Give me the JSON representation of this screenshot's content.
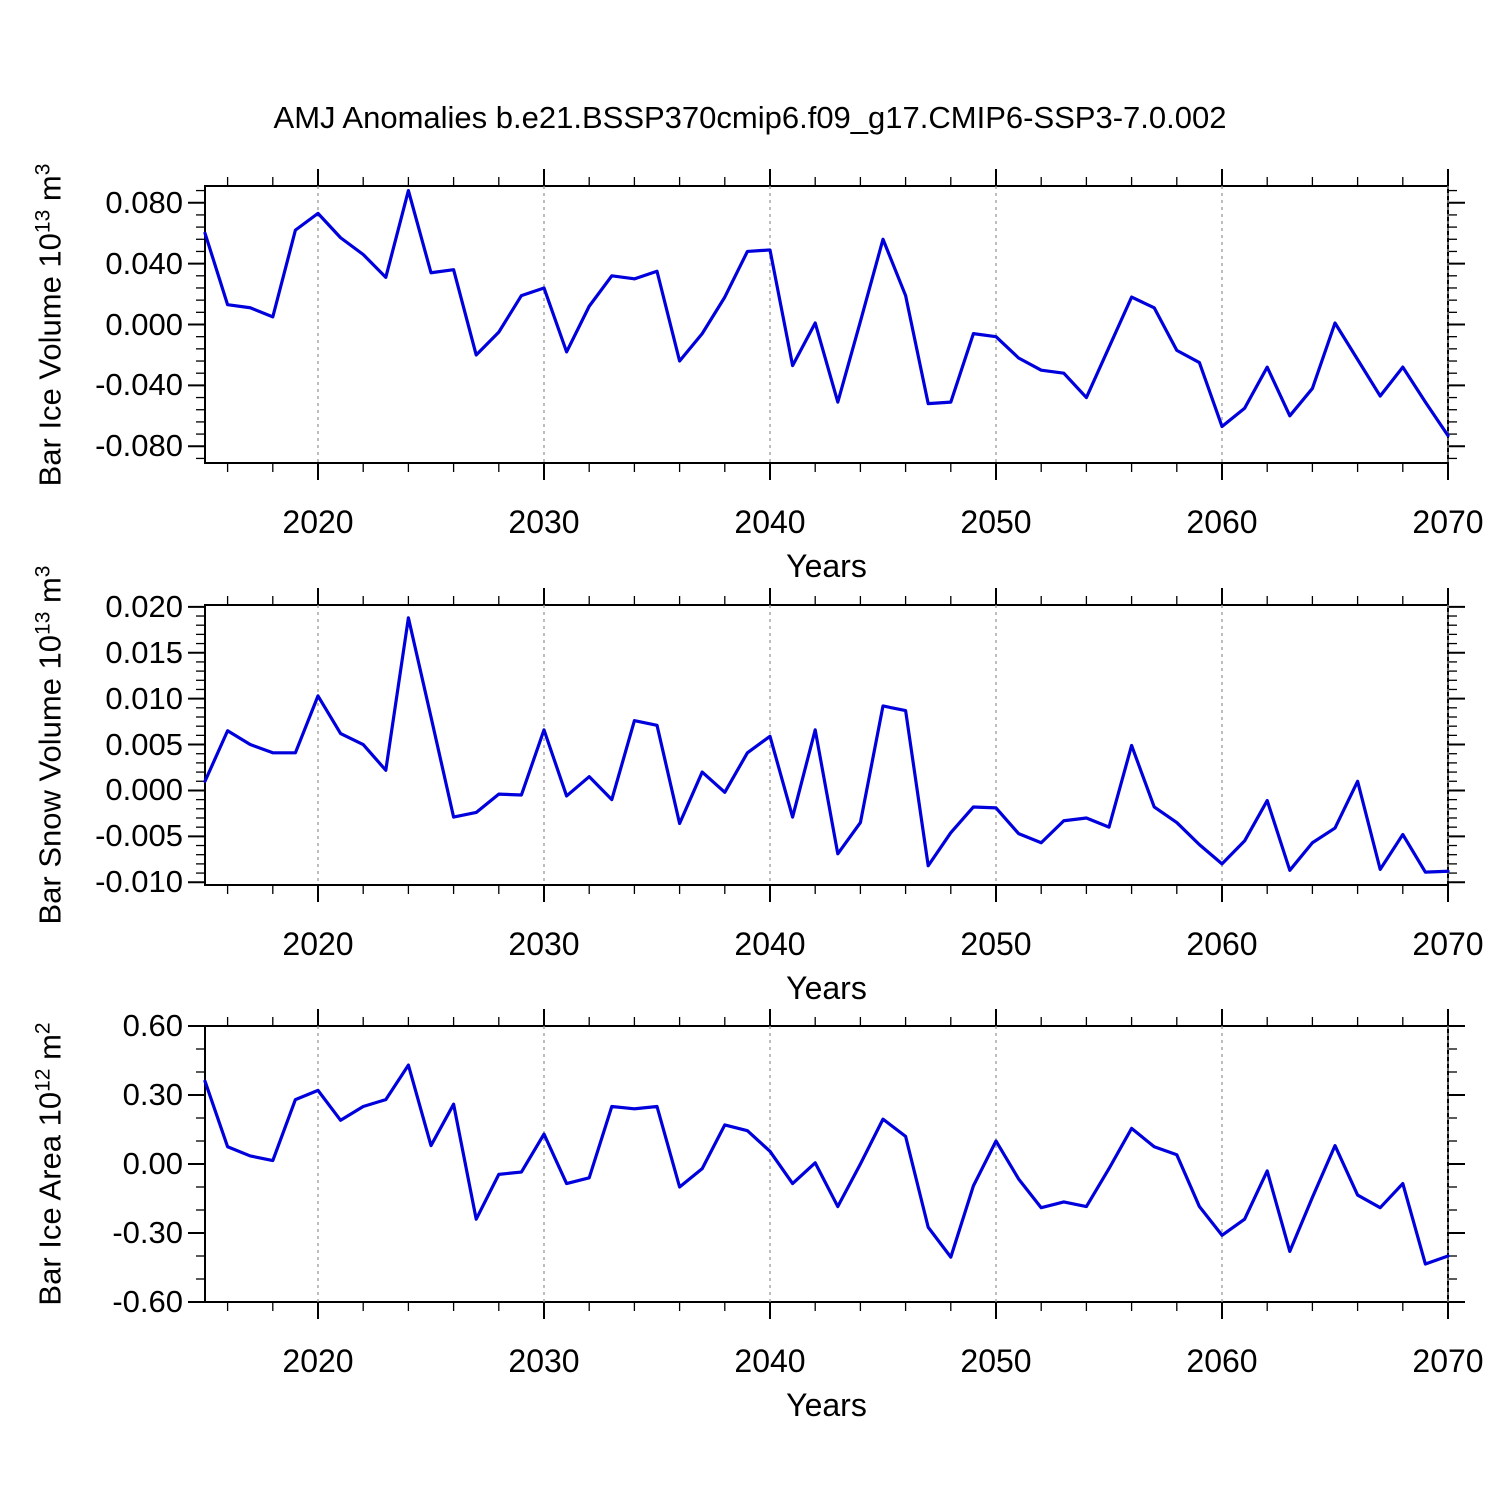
{
  "title": "AMJ Anomalies b.e21.BSSP370cmip6.f09_g17.CMIP6-SSP3-7.0.002",
  "style": {
    "line_color": "#0000DD",
    "grid_color": "#9A9A9A",
    "axis_color": "#000000",
    "background": "#FFFFFF"
  },
  "chart_data": [
    {
      "type": "line",
      "ylabel_segments": [
        {
          "t": "Bar Ice Volume 10",
          "sup": false
        },
        {
          "t": "13",
          "sup": true
        },
        {
          "t": " m",
          "sup": false
        },
        {
          "t": "3",
          "sup": true
        }
      ],
      "xlabel": "Years",
      "x_start": 2015,
      "x_end": 2070,
      "x_major_ticks": [
        2020,
        2030,
        2040,
        2050,
        2060,
        2070
      ],
      "x_tick_labels": [
        "2020",
        "2030",
        "2040",
        "2050",
        "2060",
        "2070"
      ],
      "x_minor_step": 2,
      "x_gridlines": [
        2020,
        2030,
        2040,
        2050,
        2060,
        2070
      ],
      "ylim": [
        -0.091,
        0.091
      ],
      "y_major_ticks": [
        0.08,
        0.04,
        0.0,
        -0.04,
        -0.08
      ],
      "y_tick_labels": [
        "0.080",
        "0.040",
        "0.000",
        "-0.040",
        "-0.080"
      ],
      "y_minor_step": 0.008,
      "grid": true,
      "legend": "none",
      "years": [
        2015,
        2016,
        2017,
        2018,
        2019,
        2020,
        2021,
        2022,
        2023,
        2024,
        2025,
        2026,
        2027,
        2028,
        2029,
        2030,
        2031,
        2032,
        2033,
        2034,
        2035,
        2036,
        2037,
        2038,
        2039,
        2040,
        2041,
        2042,
        2043,
        2044,
        2045,
        2046,
        2047,
        2048,
        2049,
        2050,
        2051,
        2052,
        2053,
        2054,
        2055,
        2056,
        2057,
        2058,
        2059,
        2060,
        2061,
        2062,
        2063,
        2064,
        2065,
        2066,
        2067,
        2068,
        2069,
        2070
      ],
      "values": [
        0.06,
        0.013,
        0.011,
        0.005,
        0.062,
        0.073,
        0.057,
        0.046,
        0.031,
        0.088,
        0.034,
        0.036,
        -0.02,
        -0.005,
        0.019,
        0.024,
        -0.018,
        0.012,
        0.032,
        0.03,
        0.035,
        -0.024,
        -0.006,
        0.018,
        0.048,
        0.049,
        -0.027,
        0.001,
        -0.051,
        0.002,
        0.056,
        0.019,
        -0.052,
        -0.051,
        -0.006,
        -0.008,
        -0.022,
        -0.03,
        -0.032,
        -0.048,
        -0.015,
        0.018,
        0.011,
        -0.017,
        -0.025,
        -0.067,
        -0.055,
        -0.028,
        -0.06,
        -0.042,
        0.001,
        -0.023,
        -0.047,
        -0.028,
        -0.051,
        -0.073
      ]
    },
    {
      "type": "line",
      "ylabel_segments": [
        {
          "t": "Bar Snow Volume 10",
          "sup": false
        },
        {
          "t": "13",
          "sup": true
        },
        {
          "t": " m",
          "sup": false
        },
        {
          "t": "3",
          "sup": true
        }
      ],
      "xlabel": "Years",
      "x_start": 2015,
      "x_end": 2070,
      "x_major_ticks": [
        2020,
        2030,
        2040,
        2050,
        2060,
        2070
      ],
      "x_tick_labels": [
        "2020",
        "2030",
        "2040",
        "2050",
        "2060",
        "2070"
      ],
      "x_minor_step": 2,
      "x_gridlines": [
        2020,
        2030,
        2040,
        2050,
        2060,
        2070
      ],
      "ylim": [
        -0.0103,
        0.0202
      ],
      "y_major_ticks": [
        0.02,
        0.015,
        0.01,
        0.005,
        0.0,
        -0.005,
        -0.01
      ],
      "y_tick_labels": [
        "0.020",
        "0.015",
        "0.010",
        "0.005",
        "0.000",
        "-0.005",
        "-0.010"
      ],
      "y_minor_step": 0.001,
      "grid": true,
      "legend": "none",
      "years": [
        2015,
        2016,
        2017,
        2018,
        2019,
        2020,
        2021,
        2022,
        2023,
        2024,
        2025,
        2026,
        2027,
        2028,
        2029,
        2030,
        2031,
        2032,
        2033,
        2034,
        2035,
        2036,
        2037,
        2038,
        2039,
        2040,
        2041,
        2042,
        2043,
        2044,
        2045,
        2046,
        2047,
        2048,
        2049,
        2050,
        2051,
        2052,
        2053,
        2054,
        2055,
        2056,
        2057,
        2058,
        2059,
        2060,
        2061,
        2062,
        2063,
        2064,
        2065,
        2066,
        2067,
        2068,
        2069,
        2070
      ],
      "values": [
        0.001,
        0.0065,
        0.005,
        0.0041,
        0.0041,
        0.0103,
        0.0062,
        0.005,
        0.0022,
        0.0188,
        0.008,
        -0.0029,
        -0.0024,
        -0.0004,
        -0.0005,
        0.0066,
        -0.0006,
        0.0015,
        -0.001,
        0.0076,
        0.0071,
        -0.0036,
        0.002,
        -0.0002,
        0.0041,
        0.0059,
        -0.0029,
        0.0066,
        -0.0069,
        -0.0035,
        0.0092,
        0.0087,
        -0.0082,
        -0.0046,
        -0.0018,
        -0.0019,
        -0.0047,
        -0.0057,
        -0.0033,
        -0.003,
        -0.004,
        0.0049,
        -0.0018,
        -0.0035,
        -0.0059,
        -0.008,
        -0.0055,
        -0.0011,
        -0.0087,
        -0.0057,
        -0.0041,
        0.001,
        -0.0086,
        -0.0048,
        -0.0089,
        -0.0088
      ]
    },
    {
      "type": "line",
      "ylabel_segments": [
        {
          "t": "Bar Ice Area 10",
          "sup": false
        },
        {
          "t": "12",
          "sup": true
        },
        {
          "t": " m",
          "sup": false
        },
        {
          "t": "2",
          "sup": true
        }
      ],
      "xlabel": "Years",
      "x_start": 2015,
      "x_end": 2070,
      "x_major_ticks": [
        2020,
        2030,
        2040,
        2050,
        2060,
        2070
      ],
      "x_tick_labels": [
        "2020",
        "2030",
        "2040",
        "2050",
        "2060",
        "2070"
      ],
      "x_minor_step": 2,
      "x_gridlines": [
        2020,
        2030,
        2040,
        2050,
        2060,
        2070
      ],
      "ylim": [
        -0.6,
        0.6
      ],
      "y_major_ticks": [
        0.6,
        0.3,
        0.0,
        -0.3,
        -0.6
      ],
      "y_tick_labels": [
        "0.60",
        "0.30",
        "0.00",
        "-0.30",
        "-0.60"
      ],
      "y_minor_step": 0.1,
      "grid": true,
      "legend": "none",
      "years": [
        2015,
        2016,
        2017,
        2018,
        2019,
        2020,
        2021,
        2022,
        2023,
        2024,
        2025,
        2026,
        2027,
        2028,
        2029,
        2030,
        2031,
        2032,
        2033,
        2034,
        2035,
        2036,
        2037,
        2038,
        2039,
        2040,
        2041,
        2042,
        2043,
        2044,
        2045,
        2046,
        2047,
        2048,
        2049,
        2050,
        2051,
        2052,
        2053,
        2054,
        2055,
        2056,
        2057,
        2058,
        2059,
        2060,
        2061,
        2062,
        2063,
        2064,
        2065,
        2066,
        2067,
        2068,
        2069,
        2070
      ],
      "values": [
        0.36,
        0.075,
        0.035,
        0.015,
        0.28,
        0.32,
        0.19,
        0.25,
        0.28,
        0.43,
        0.08,
        0.26,
        -0.24,
        -0.045,
        -0.035,
        0.13,
        -0.085,
        -0.06,
        0.25,
        0.24,
        0.25,
        -0.1,
        -0.02,
        0.17,
        0.145,
        0.055,
        -0.085,
        0.005,
        -0.185,
        0.0,
        0.195,
        0.12,
        -0.275,
        -0.405,
        -0.095,
        0.1,
        -0.065,
        -0.19,
        -0.165,
        -0.185,
        -0.02,
        0.155,
        0.075,
        0.04,
        -0.185,
        -0.31,
        -0.24,
        -0.03,
        -0.38,
        -0.145,
        0.08,
        -0.135,
        -0.19,
        -0.085,
        -0.435,
        -0.4
      ]
    }
  ]
}
